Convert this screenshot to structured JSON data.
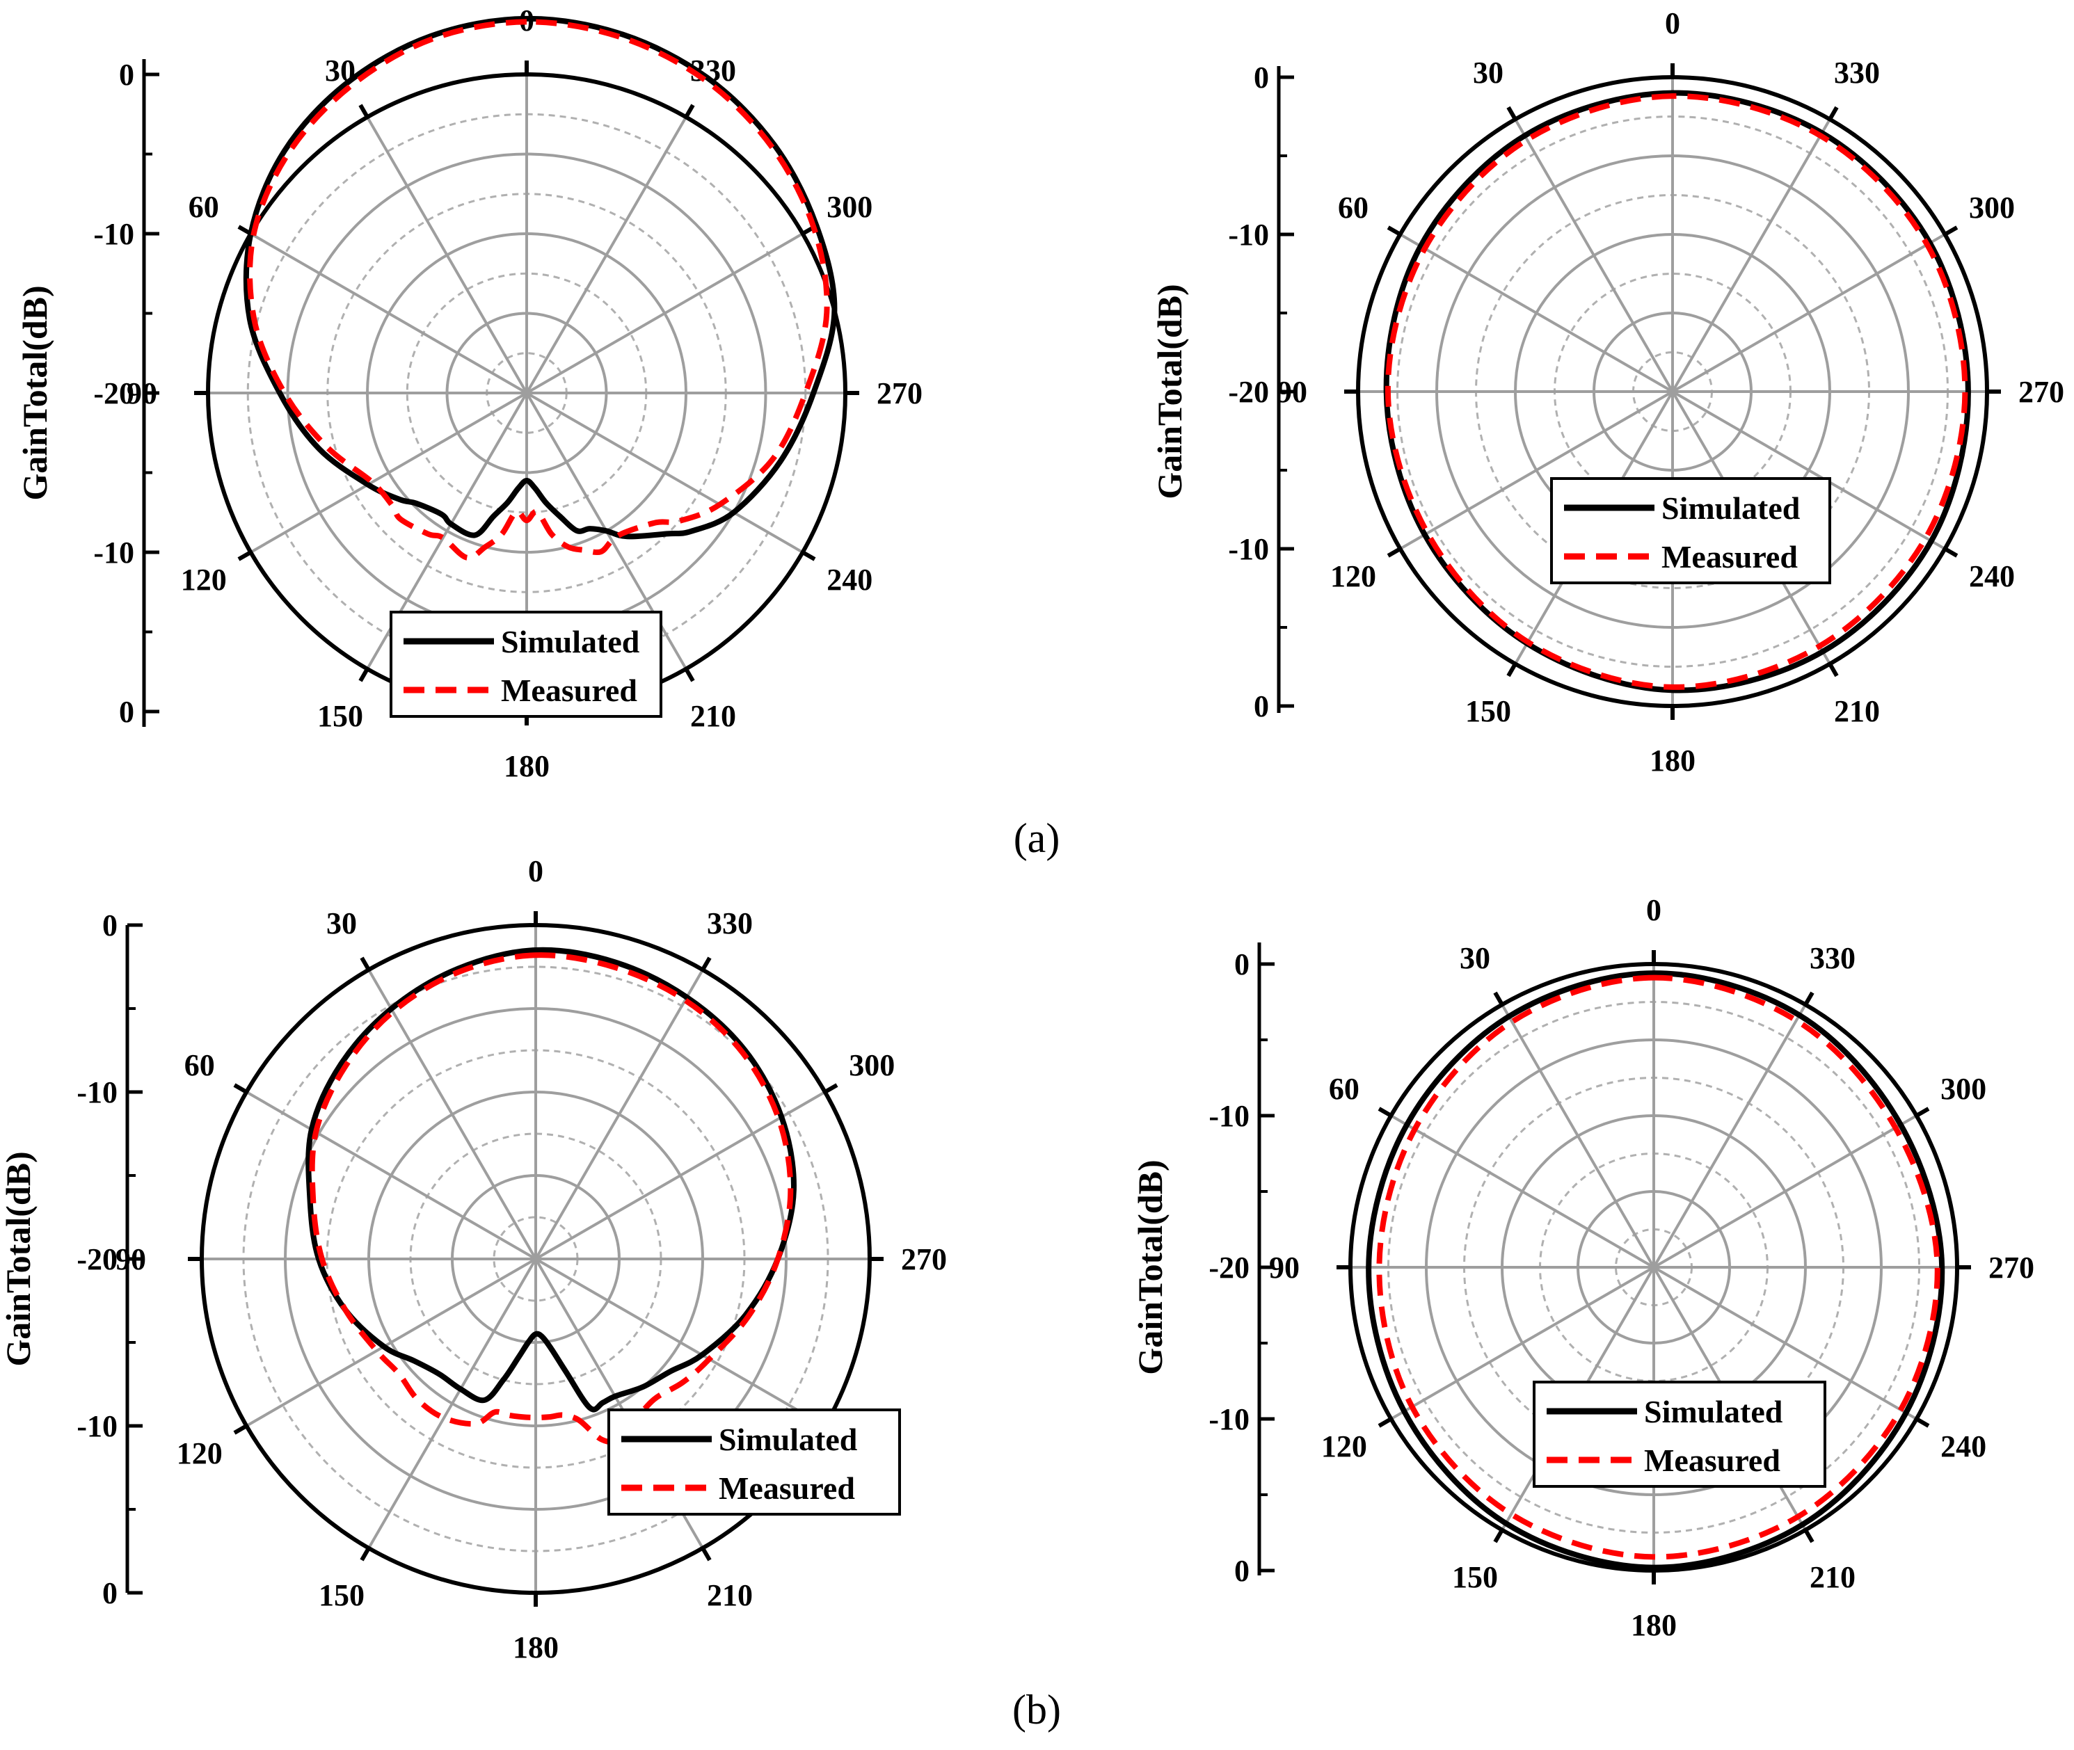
{
  "figure": {
    "panel_labels": [
      "(a)",
      "(b)"
    ],
    "colors": {
      "simulated": "#000000",
      "measured": "#ff0000",
      "grid_solid": "#9e9e9e",
      "grid_dashed": "#b0b0b0"
    }
  },
  "chart_data": [
    {
      "type": "polar-line",
      "panel": "(a)",
      "ylabel": "GainTotal(dB)",
      "angle_ticks": [
        "0",
        "30",
        "60",
        "90",
        "120",
        "150",
        "180",
        "210",
        "240",
        "270",
        "300",
        "330"
      ],
      "radial_ticks": [
        "0",
        "-10",
        "-20",
        "-10",
        "0"
      ],
      "rlim": [
        -20,
        0
      ],
      "legend": [
        "Simulated",
        "Measured"
      ],
      "theta_deg": [
        0,
        15,
        30,
        45,
        60,
        75,
        90,
        105,
        120,
        130,
        135,
        145,
        150,
        160,
        165,
        170,
        175,
        180,
        185,
        190,
        195,
        200,
        205,
        210,
        215,
        225,
        230,
        240,
        255,
        270,
        285,
        300,
        315,
        330,
        345
      ],
      "series": [
        {
          "name": "Simulated",
          "values": [
            3.5,
            3.2,
            2.5,
            1.5,
            0.0,
            -2.0,
            -4.5,
            -6.5,
            -8.5,
            -9.6,
            -10.2,
            -10.7,
            -10.5,
            -10.5,
            -12.0,
            -13.0,
            -14.0,
            -14.5,
            -14.0,
            -13.0,
            -12.0,
            -10.8,
            -10.6,
            -10.0,
            -9.0,
            -7.5,
            -6.5,
            -5.0,
            -3.5,
            -2.0,
            0.0,
            1.0,
            2.0,
            2.8,
            3.3
          ]
        },
        {
          "name": "Measured",
          "values": [
            3.3,
            3.0,
            2.2,
            1.2,
            -0.2,
            -2.3,
            -4.8,
            -7.0,
            -8.8,
            -9.0,
            -8.8,
            -9.2,
            -9.5,
            -9.0,
            -10.0,
            -11.0,
            -12.5,
            -12.0,
            -12.5,
            -11.0,
            -10.0,
            -9.5,
            -9.0,
            -9.3,
            -9.3,
            -8.5,
            -7.5,
            -6.0,
            -4.0,
            -2.5,
            -0.5,
            0.8,
            1.8,
            2.6,
            3.1
          ]
        }
      ]
    },
    {
      "type": "polar-line",
      "panel": "(a)",
      "ylabel": "GainTotal(dB)",
      "angle_ticks": [
        "0",
        "30",
        "60",
        "90",
        "120",
        "150",
        "180",
        "210",
        "240",
        "270",
        "300",
        "330"
      ],
      "radial_ticks": [
        "0",
        "-10",
        "-20",
        "-10",
        "0"
      ],
      "rlim": [
        -20,
        0
      ],
      "legend": [
        "Simulated",
        "Measured"
      ],
      "theta_deg": [
        0,
        30,
        60,
        90,
        120,
        150,
        180,
        210,
        240,
        270,
        300,
        330
      ],
      "series": [
        {
          "name": "Simulated",
          "values": [
            -1.0,
            -1.2,
            -1.5,
            -1.8,
            -1.8,
            -1.5,
            -1.0,
            -0.9,
            -1.0,
            -1.2,
            -1.1,
            -1.0
          ]
        },
        {
          "name": "Measured",
          "values": [
            -1.2,
            -1.5,
            -1.8,
            -1.9,
            -2.0,
            -1.6,
            -1.2,
            -1.3,
            -1.4,
            -1.4,
            -1.3,
            -1.2
          ]
        }
      ]
    },
    {
      "type": "polar-line",
      "panel": "(b)",
      "ylabel": "GainTotal(dB)",
      "angle_ticks": [
        "0",
        "30",
        "60",
        "90",
        "120",
        "150",
        "180",
        "210",
        "240",
        "270",
        "300",
        "330"
      ],
      "radial_ticks": [
        "0",
        "-10",
        "-20",
        "-10",
        "0"
      ],
      "rlim": [
        -20,
        0
      ],
      "legend": [
        "Simulated",
        "Measured"
      ],
      "theta_deg": [
        0,
        15,
        30,
        45,
        60,
        75,
        90,
        105,
        120,
        130,
        140,
        150,
        160,
        165,
        170,
        175,
        180,
        185,
        190,
        195,
        200,
        205,
        210,
        220,
        230,
        240,
        255,
        270,
        285,
        300,
        315,
        330,
        345
      ],
      "series": [
        {
          "name": "Simulated",
          "values": [
            -1.5,
            -2.0,
            -2.7,
            -3.5,
            -4.5,
            -6.0,
            -7.0,
            -8.2,
            -9.5,
            -10.5,
            -11.0,
            -11.0,
            -11.0,
            -12.5,
            -14.0,
            -15.0,
            -15.5,
            -15.3,
            -14.5,
            -13.0,
            -10.5,
            -10.5,
            -10.5,
            -10.0,
            -9.5,
            -8.5,
            -7.0,
            -5.5,
            -4.0,
            -3.0,
            -2.3,
            -1.9,
            -1.6
          ]
        },
        {
          "name": "Measured",
          "values": [
            -1.8,
            -2.2,
            -2.9,
            -3.8,
            -4.8,
            -6.2,
            -7.2,
            -8.2,
            -9.0,
            -9.3,
            -9.0,
            -9.0,
            -9.5,
            -10.5,
            -10.5,
            -10.5,
            -10.5,
            -10.5,
            -10.5,
            -10.0,
            -8.5,
            -8.0,
            -8.5,
            -9.0,
            -8.5,
            -8.0,
            -6.8,
            -5.5,
            -4.2,
            -3.2,
            -2.5,
            -2.1,
            -1.9
          ]
        }
      ]
    },
    {
      "type": "polar-line",
      "panel": "(b)",
      "ylabel": "GainTotal(dB)",
      "angle_ticks": [
        "0",
        "30",
        "60",
        "90",
        "120",
        "150",
        "180",
        "210",
        "240",
        "270",
        "300",
        "330"
      ],
      "radial_ticks": [
        "0",
        "-10",
        "-20",
        "-10",
        "0"
      ],
      "rlim": [
        -20,
        0
      ],
      "legend": [
        "Simulated",
        "Measured"
      ],
      "theta_deg": [
        0,
        30,
        60,
        90,
        120,
        150,
        180,
        210,
        240,
        270,
        300,
        330
      ],
      "series": [
        {
          "name": "Simulated",
          "values": [
            -0.6,
            -0.9,
            -1.2,
            -1.2,
            -1.0,
            -0.5,
            -0.2,
            -0.4,
            -0.8,
            -1.0,
            -1.2,
            -0.8
          ]
        },
        {
          "name": "Measured",
          "values": [
            -0.9,
            -1.3,
            -1.8,
            -1.9,
            -1.6,
            -1.2,
            -0.9,
            -1.0,
            -1.2,
            -1.3,
            -1.6,
            -1.2
          ]
        }
      ]
    }
  ]
}
